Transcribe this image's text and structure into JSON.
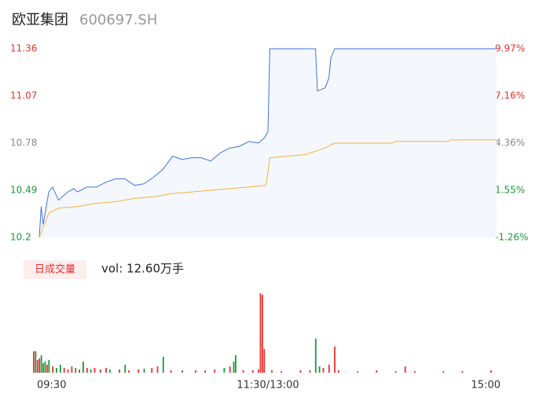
{
  "chart_data": {
    "type": "line",
    "title": "欧亚集团",
    "subtitle": "600697.SH",
    "xlim": [
      0,
      240
    ],
    "xticks": [
      {
        "value": 0,
        "label": "09:30"
      },
      {
        "value": 120,
        "label": "11:30/13:00"
      },
      {
        "value": 240,
        "label": "15:00"
      }
    ],
    "ylim": [
      10.2,
      11.36
    ],
    "yticks": [
      11.36,
      11.07,
      10.78,
      10.49,
      10.2
    ],
    "ytick_colors": [
      "#e8312f",
      "#e8312f",
      "#888888",
      "#1a9a3a",
      "#1a9a3a"
    ],
    "y2lim": [
      -1.26,
      9.97
    ],
    "y2ticks": [
      {
        "value": 9.97,
        "label": "9.97%"
      },
      {
        "value": 7.16,
        "label": "7.16%"
      },
      {
        "value": 4.36,
        "label": "4.36%"
      },
      {
        "value": 1.55,
        "label": "1.55%"
      },
      {
        "value": -1.26,
        "label": "-1.26%"
      }
    ],
    "series": [
      {
        "color": "#3f73e0",
        "fill": "#f4f7fd",
        "x": [
          0,
          1,
          2,
          5,
          7,
          10,
          15,
          18,
          20,
          25,
          30,
          35,
          40,
          45,
          50,
          55,
          60,
          65,
          70,
          75,
          80,
          85,
          90,
          95,
          100,
          105,
          110,
          115,
          118,
          120,
          121,
          145,
          146,
          150,
          152,
          153,
          155,
          240
        ],
        "values": [
          10.2,
          10.39,
          10.28,
          10.48,
          10.51,
          10.43,
          10.48,
          10.5,
          10.48,
          10.51,
          10.51,
          10.54,
          10.56,
          10.56,
          10.52,
          10.53,
          10.57,
          10.62,
          10.7,
          10.68,
          10.69,
          10.69,
          10.67,
          10.72,
          10.75,
          10.76,
          10.79,
          10.78,
          10.81,
          10.85,
          11.36,
          11.36,
          11.1,
          11.12,
          11.18,
          11.3,
          11.36,
          11.36
        ]
      },
      {
        "color": "#f5b23a",
        "x": [
          0,
          5,
          10,
          20,
          30,
          40,
          50,
          60,
          70,
          80,
          90,
          100,
          110,
          119,
          121,
          130,
          140,
          145,
          150,
          155,
          185,
          187,
          215,
          216,
          240
        ],
        "values": [
          10.2,
          10.35,
          10.38,
          10.39,
          10.41,
          10.42,
          10.44,
          10.45,
          10.47,
          10.48,
          10.49,
          10.5,
          10.51,
          10.52,
          10.69,
          10.7,
          10.71,
          10.73,
          10.75,
          10.78,
          10.78,
          10.79,
          10.79,
          10.8,
          10.8
        ]
      }
    ],
    "volume_tag": "日成交量",
    "volume_label": "vol: 12.60万手",
    "volume": {
      "ylim": [
        0,
        100
      ],
      "x": [
        0,
        1,
        2,
        3,
        4,
        5,
        6,
        7,
        8,
        10,
        12,
        14,
        16,
        18,
        20,
        22,
        24,
        26,
        28,
        30,
        32,
        35,
        38,
        40,
        45,
        48,
        50,
        55,
        58,
        62,
        65,
        68,
        72,
        78,
        85,
        90,
        95,
        100,
        103,
        105,
        106,
        110,
        115,
        118,
        119,
        120,
        121,
        125,
        130,
        140,
        145,
        148,
        150,
        152,
        155,
        158,
        160,
        170,
        180,
        190,
        195,
        200,
        215,
        225,
        240
      ],
      "values": [
        27,
        27,
        16,
        18,
        22,
        12,
        14,
        10,
        16,
        8,
        6,
        10,
        6,
        4,
        8,
        6,
        4,
        14,
        6,
        4,
        6,
        4,
        6,
        4,
        4,
        10,
        3,
        4,
        5,
        6,
        8,
        20,
        3,
        3,
        3,
        3,
        4,
        6,
        8,
        14,
        22,
        3,
        3,
        4,
        100,
        98,
        30,
        3,
        2,
        3,
        3,
        43,
        8,
        6,
        10,
        33,
        3,
        2,
        3,
        2,
        8,
        2,
        2,
        2,
        3
      ],
      "colors": [
        "#e8312f",
        "#1a9a3a",
        "#e8312f",
        "#e8312f",
        "#1a9a3a",
        "#1a9a3a",
        "#1a9a3a",
        "#e8312f",
        "#1a9a3a",
        "#e8312f",
        "#1a9a3a",
        "#1a9a3a",
        "#e8312f",
        "#e8312f",
        "#e8312f",
        "#1a9a3a",
        "#e8312f",
        "#1a9a3a",
        "#e8312f",
        "#1a9a3a",
        "#e8312f",
        "#e8312f",
        "#e8312f",
        "#1a9a3a",
        "#e8312f",
        "#1a9a3a",
        "#e8312f",
        "#e8312f",
        "#1a9a3a",
        "#e8312f",
        "#e8312f",
        "#1a9a3a",
        "#e8312f",
        "#1a9a3a",
        "#e8312f",
        "#e8312f",
        "#e8312f",
        "#1a9a3a",
        "#e8312f",
        "#1a9a3a",
        "#1a9a3a",
        "#e8312f",
        "#e8312f",
        "#e8312f",
        "#e8312f",
        "#e8312f",
        "#e8312f",
        "#e8312f",
        "#e8312f",
        "#e8312f",
        "#e8312f",
        "#1a9a3a",
        "#1a9a3a",
        "#e8312f",
        "#e8312f",
        "#e8312f",
        "#e8312f",
        "#e8312f",
        "#e8312f",
        "#1a9a3a",
        "#e8312f",
        "#e8312f",
        "#e8312f",
        "#e8312f",
        "#e8312f"
      ]
    }
  }
}
